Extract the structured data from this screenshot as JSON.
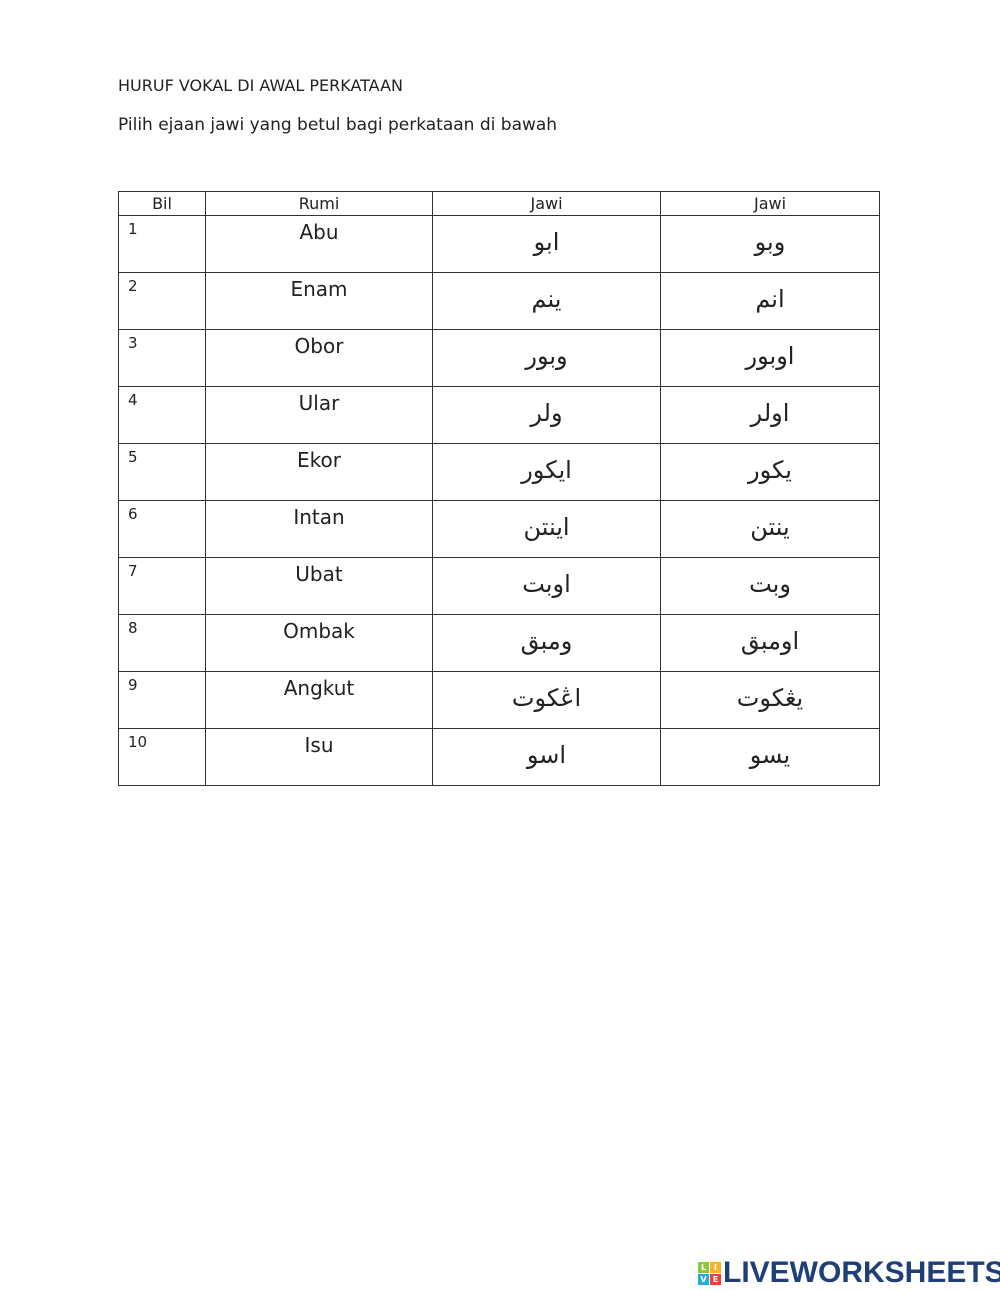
{
  "header": {
    "title": "HURUF VOKAL DI AWAL PERKATAAN",
    "instruction": "Pilih ejaan jawi yang betul bagi perkataan di bawah"
  },
  "table": {
    "headers": [
      "Bil",
      "Rumi",
      "Jawi",
      "Jawi"
    ],
    "rows": [
      {
        "bil": "1",
        "rumi": "Abu",
        "jawi_a": "ابو",
        "jawi_b": "وبو"
      },
      {
        "bil": "2",
        "rumi": "Enam",
        "jawi_a": "ينم",
        "jawi_b": "انم"
      },
      {
        "bil": "3",
        "rumi": "Obor",
        "jawi_a": "وبور",
        "jawi_b": "اوبور"
      },
      {
        "bil": "4",
        "rumi": "Ular",
        "jawi_a": "ولر",
        "jawi_b": "اولر"
      },
      {
        "bil": "5",
        "rumi": "Ekor",
        "jawi_a": "ايکور",
        "jawi_b": "يکور"
      },
      {
        "bil": "6",
        "rumi": "Intan",
        "jawi_a": "اينتن",
        "jawi_b": "ينتن"
      },
      {
        "bil": "7",
        "rumi": "Ubat",
        "jawi_a": "اوبت",
        "jawi_b": "وبت"
      },
      {
        "bil": "8",
        "rumi": "Ombak",
        "jawi_a": "ومبق",
        "jawi_b": "اومبق"
      },
      {
        "bil": "9",
        "rumi": "Angkut",
        "jawi_a": "اڠکوت",
        "jawi_b": "يڠکوت"
      },
      {
        "bil": "10",
        "rumi": "Isu",
        "jawi_a": "اسو",
        "jawi_b": "يسو"
      }
    ]
  },
  "footer": {
    "logo_text": "LIVEWORKSHEETS",
    "logo_blocks": [
      "L",
      "I",
      "V",
      "E"
    ],
    "logo_colors": [
      "#8dc63f",
      "#f7b32b",
      "#29a9e0",
      "#e8403a"
    ],
    "brand_color": "#1f3f7a"
  }
}
